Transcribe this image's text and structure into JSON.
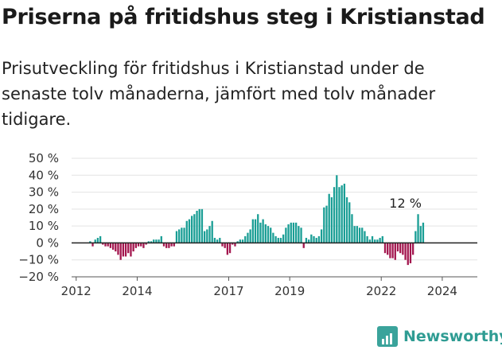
{
  "header": {
    "title": "Priserna på fritidshus steg i Kristianstad",
    "subtitle": "Prisutveckling för fritidshus i Kristianstad under de senaste tolv månaderna, jämfört med tolv månader tidigare."
  },
  "brand": {
    "name": "Newsworthy",
    "icon": "bar-chart-icon",
    "color": "#3aa39b"
  },
  "colors": {
    "positive": "#1a9e95",
    "negative": "#a3164e"
  },
  "chart_data": {
    "type": "bar",
    "title": "",
    "xlabel": "",
    "ylabel": "",
    "ylim": [
      -20,
      50
    ],
    "y_ticks": [
      50,
      40,
      30,
      20,
      10,
      0,
      -10,
      -20
    ],
    "y_tick_labels": [
      "50 %",
      "40 %",
      "30 %",
      "20 %",
      "10 %",
      "0 %",
      "−10 %",
      "−20 %"
    ],
    "x_ticks": [
      2012,
      2014,
      2017,
      2019,
      2022,
      2024
    ],
    "x_tick_labels": [
      "2012",
      "2014",
      "2017",
      "2019",
      "2022",
      "2024"
    ],
    "x_range": [
      2011.85,
      2025.15
    ],
    "grid": true,
    "last_label": "12 %",
    "period_start": [
      2012,
      6
    ],
    "values": [
      1,
      -2,
      2,
      3,
      4,
      -1,
      -2,
      -2,
      -3,
      -4,
      -5,
      -7,
      -10,
      -8,
      -8,
      -6,
      -8,
      -5,
      -3,
      -2,
      -2,
      -3,
      -1,
      1,
      1,
      2,
      2,
      2,
      4,
      -2,
      -3,
      -3,
      -2,
      -2,
      7,
      8,
      9,
      9,
      13,
      14,
      16,
      17,
      19,
      20,
      20,
      7,
      8,
      10,
      13,
      3,
      2,
      3,
      -2,
      -3,
      -7,
      -6,
      -1,
      -2,
      1,
      2,
      2,
      4,
      6,
      8,
      14,
      14,
      17,
      12,
      14,
      11,
      10,
      9,
      6,
      4,
      3,
      3,
      5,
      9,
      11,
      12,
      12,
      12,
      10,
      9,
      -3,
      3,
      2,
      5,
      4,
      3,
      4,
      8,
      21,
      22,
      29,
      27,
      33,
      40,
      33,
      34,
      35,
      27,
      24,
      17,
      10,
      10,
      9,
      9,
      7,
      4,
      2,
      4,
      2,
      2,
      3,
      4,
      -6,
      -7,
      -9,
      -9,
      -10,
      -5,
      -6,
      -7,
      -10,
      -13,
      -12,
      -7,
      7,
      17,
      10,
      12
    ]
  }
}
